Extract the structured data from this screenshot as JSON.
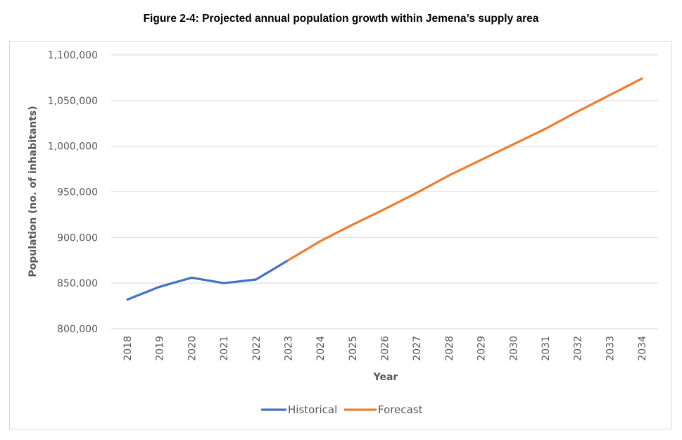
{
  "figure_title": "Figure 2-4: Projected annual population growth within Jemena’s supply area",
  "chart_data": {
    "type": "line",
    "xlabel": "Year",
    "ylabel": "Population (no. of inhabitants)",
    "x": [
      2018,
      2019,
      2020,
      2021,
      2022,
      2023,
      2024,
      2025,
      2026,
      2027,
      2028,
      2029,
      2030,
      2031,
      2032,
      2033,
      2034
    ],
    "ylim": [
      800000,
      1100000
    ],
    "yticks": [
      800000,
      850000,
      900000,
      950000,
      1000000,
      1050000,
      1100000
    ],
    "ytick_labels": [
      "800,000",
      "850,000",
      "900,000",
      "950,000",
      "1,000,000",
      "1,050,000",
      "1,100,000"
    ],
    "grid": true,
    "legend_position": "bottom",
    "series": [
      {
        "name": "Historical",
        "color": "#4472C4",
        "x": [
          2018,
          2019,
          2020,
          2021,
          2022,
          2023
        ],
        "values": [
          832000,
          846000,
          856000,
          850000,
          854000,
          875000
        ]
      },
      {
        "name": "Forecast",
        "color": "#ED7D31",
        "x": [
          2023,
          2024,
          2025,
          2026,
          2027,
          2028,
          2029,
          2030,
          2031,
          2032,
          2033,
          2034
        ],
        "values": [
          875000,
          896000,
          914000,
          931000,
          949000,
          968000,
          985000,
          1002000,
          1019000,
          1038000,
          1056000,
          1074000
        ]
      }
    ]
  }
}
